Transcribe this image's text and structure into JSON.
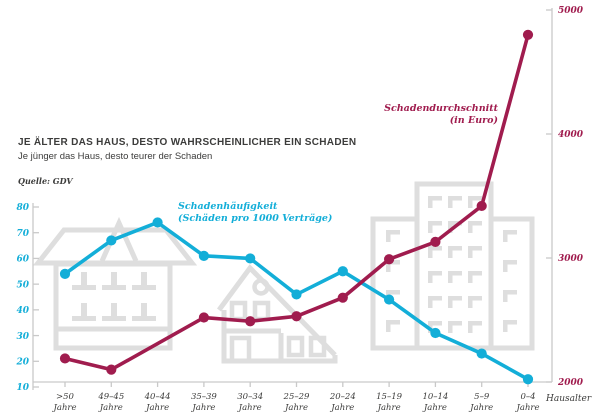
{
  "header": {
    "title": "JE ÄLTER DAS HAUS, DESTO WAHRSCHEINLICHER EIN SCHADEN",
    "subtitle": "Je jünger das Haus, desto teurer der Schaden",
    "source": "Quelle: GDV"
  },
  "chart_data": {
    "type": "line",
    "categories": [
      ">50",
      "49–45",
      "40–44",
      "35–39",
      "30–34",
      "25–29",
      "20–24",
      "15–19",
      "10–14",
      "5–9",
      "0–4"
    ],
    "category_unit": "Jahre",
    "x_axis_label": "Hausalter",
    "series": [
      {
        "name": "Schadenhäufigkeit",
        "sublabel": "(Schäden pro 1000 Verträge)",
        "axis": "left",
        "color": "#13aed8",
        "values": [
          54,
          67,
          74,
          61,
          60,
          46,
          55,
          44,
          31,
          23,
          13
        ]
      },
      {
        "name": "Schadendurchschnitt",
        "sublabel": "(in Euro)",
        "axis": "right",
        "color": "#a01c4e",
        "values": [
          2190,
          2100,
          null,
          2520,
          2490,
          2530,
          2680,
          2990,
          3130,
          3420,
          4800
        ]
      }
    ],
    "axes": {
      "left": {
        "ticks": [
          80,
          70,
          60,
          50,
          40,
          30,
          20,
          10
        ],
        "range": [
          10,
          80
        ],
        "color": "#13aed8"
      },
      "right": {
        "ticks": [
          5000,
          4000,
          3000,
          2000
        ],
        "range": [
          2000,
          5000
        ],
        "color": "#a01c4e"
      }
    },
    "grid": false,
    "legend_position": "inline-annotations"
  },
  "colors": {
    "accent_cyan": "#13aed8",
    "accent_red": "#a01c4e",
    "building_gray": "#dedede",
    "axis_gray": "#c9c9c9",
    "text_dark": "#3c3c3b"
  }
}
